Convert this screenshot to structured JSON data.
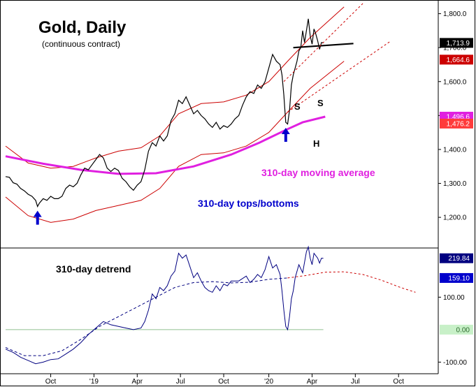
{
  "title": "Gold, Daily",
  "subtitle": "(continuous contract)",
  "colors": {
    "price": "#000000",
    "band": "#cc0000",
    "ma": "#e020e0",
    "annotation_blue": "#0000cc",
    "detrend": "#000080",
    "zero_line": "#90c090",
    "grid": "#cccccc"
  },
  "chart_data": [
    {
      "type": "line",
      "panel": "price",
      "x_tick_labels": [
        "Oct",
        "'19",
        "Apr",
        "Jul",
        "Oct",
        "'20",
        "Apr",
        "Jul",
        "Oct"
      ],
      "y_tick_labels": [
        "1,800.0",
        "1,700.0",
        "1,600.0",
        "1,500.0",
        "1,400.0",
        "1,300.0",
        "1,200.0"
      ],
      "y_ticks": [
        1800,
        1700,
        1600,
        1500,
        1400,
        1300,
        1200
      ],
      "ylim": [
        1120,
        1830
      ],
      "price_label": "1,713.9",
      "price_label_value": 1713.9,
      "band_label": "1,664.6",
      "band_label_value": 1664.6,
      "ma_label": "1,496.6",
      "ma_label_value": 1496.6,
      "lower_label": "1,476.2",
      "lower_label_value": 1476.2,
      "series": [
        {
          "name": "Gold",
          "points": [
            [
              0,
              1320
            ],
            [
              2,
              1318
            ],
            [
              4,
              1302
            ],
            [
              6,
              1298
            ],
            [
              8,
              1285
            ],
            [
              10,
              1278
            ],
            [
              12,
              1268
            ],
            [
              14,
              1262
            ],
            [
              16,
              1250
            ],
            [
              17,
              1232
            ],
            [
              18,
              1242
            ],
            [
              20,
              1255
            ],
            [
              22,
              1250
            ],
            [
              24,
              1262
            ],
            [
              26,
              1255
            ],
            [
              28,
              1255
            ],
            [
              30,
              1262
            ],
            [
              32,
              1285
            ],
            [
              34,
              1295
            ],
            [
              36,
              1290
            ],
            [
              38,
              1300
            ],
            [
              40,
              1325
            ],
            [
              42,
              1345
            ],
            [
              44,
              1340
            ],
            [
              46,
              1355
            ],
            [
              48,
              1370
            ],
            [
              50,
              1385
            ],
            [
              52,
              1375
            ],
            [
              54,
              1345
            ],
            [
              56,
              1335
            ],
            [
              58,
              1345
            ],
            [
              60,
              1338
            ],
            [
              62,
              1315
            ],
            [
              64,
              1305
            ],
            [
              66,
              1290
            ],
            [
              68,
              1280
            ],
            [
              70,
              1295
            ],
            [
              72,
              1305
            ],
            [
              74,
              1340
            ],
            [
              76,
              1395
            ],
            [
              78,
              1420
            ],
            [
              80,
              1410
            ],
            [
              82,
              1440
            ],
            [
              84,
              1425
            ],
            [
              86,
              1440
            ],
            [
              88,
              1485
            ],
            [
              90,
              1505
            ],
            [
              92,
              1545
            ],
            [
              94,
              1535
            ],
            [
              96,
              1555
            ],
            [
              98,
              1530
            ],
            [
              100,
              1505
            ],
            [
              102,
              1515
            ],
            [
              104,
              1500
            ],
            [
              106,
              1490
            ],
            [
              108,
              1475
            ],
            [
              110,
              1465
            ],
            [
              112,
              1480
            ],
            [
              114,
              1460
            ],
            [
              116,
              1470
            ],
            [
              118,
              1465
            ],
            [
              120,
              1475
            ],
            [
              122,
              1490
            ],
            [
              124,
              1500
            ],
            [
              126,
              1530
            ],
            [
              128,
              1555
            ],
            [
              130,
              1570
            ],
            [
              132,
              1565
            ],
            [
              134,
              1590
            ],
            [
              136,
              1580
            ],
            [
              138,
              1600
            ],
            [
              140,
              1640
            ],
            [
              142,
              1680
            ],
            [
              144,
              1660
            ],
            [
              146,
              1650
            ],
            [
              147,
              1620
            ],
            [
              148,
              1560
            ],
            [
              149,
              1480
            ],
            [
              150,
              1475
            ],
            [
              151,
              1515
            ],
            [
              152,
              1590
            ],
            [
              153,
              1620
            ],
            [
              154,
              1640
            ],
            [
              155,
              1660
            ],
            [
              156,
              1690
            ],
            [
              157,
              1700
            ],
            [
              158,
              1750
            ],
            [
              159,
              1715
            ],
            [
              160,
              1750
            ],
            [
              161,
              1785
            ],
            [
              162,
              1735
            ],
            [
              163,
              1710
            ],
            [
              164,
              1755
            ],
            [
              165,
              1740
            ],
            [
              166,
              1720
            ],
            [
              167,
              1695
            ],
            [
              168,
              1715
            ],
            [
              169,
              1713.9
            ]
          ]
        },
        {
          "name": "",
          "points": [
            [
              0,
              1380
            ],
            [
              20,
              1358
            ],
            [
              40,
              1340
            ],
            [
              60,
              1328
            ],
            [
              80,
              1330
            ],
            [
              100,
              1350
            ],
            [
              120,
              1385
            ],
            [
              135,
              1420
            ],
            [
              150,
              1460
            ],
            [
              158,
              1480
            ],
            [
              170,
              1496.6
            ]
          ]
        },
        {
          "name": "",
          "points": [
            [
              0,
              1410
            ],
            [
              12,
              1360
            ],
            [
              24,
              1345
            ],
            [
              36,
              1350
            ],
            [
              48,
              1375
            ],
            [
              60,
              1395
            ],
            [
              72,
              1405
            ],
            [
              82,
              1440
            ],
            [
              92,
              1505
            ],
            [
              104,
              1535
            ],
            [
              116,
              1540
            ],
            [
              128,
              1560
            ],
            [
              140,
              1600
            ],
            [
              150,
              1660
            ],
            [
              162,
              1730
            ],
            [
              180,
              1820
            ]
          ]
        },
        {
          "name": "",
          "points": [
            [
              0,
              1260
            ],
            [
              12,
              1205
            ],
            [
              24,
              1185
            ],
            [
              36,
              1195
            ],
            [
              48,
              1220
            ],
            [
              60,
              1235
            ],
            [
              72,
              1250
            ],
            [
              82,
              1285
            ],
            [
              92,
              1350
            ],
            [
              104,
              1385
            ],
            [
              116,
              1390
            ],
            [
              128,
              1410
            ],
            [
              140,
              1450
            ],
            [
              150,
              1510
            ],
            [
              162,
              1580
            ],
            [
              180,
              1660
            ]
          ]
        },
        {
          "name": "",
          "points": [
            [
              153,
              1700
            ],
            [
              185,
              1712
            ]
          ]
        }
      ],
      "annotations": [
        {
          "text": "310-day moving average",
          "color": "#e020e0"
        },
        {
          "text": "310-day tops/bottoms",
          "color": "#0000cc"
        },
        {
          "text": "S",
          "color": "#000000"
        },
        {
          "text": "S",
          "color": "#000000"
        },
        {
          "text": "H",
          "color": "#000000"
        }
      ],
      "arrows": [
        {
          "index": 17,
          "value": 1232
        },
        {
          "index": 149,
          "value": 1476
        }
      ]
    },
    {
      "type": "line",
      "panel": "detrend",
      "title": "310-day detrend",
      "y_tick_labels": [
        "100.00",
        "0.00",
        "-100.00"
      ],
      "y_ticks": [
        100,
        0,
        -100
      ],
      "ylim": [
        -125,
        245
      ],
      "value_label": "219.84",
      "value_label_value": 219.84,
      "cycle_label": "159.10",
      "cycle_label_value": 159.1,
      "zero_label": "0.00",
      "series": [
        {
          "name": "",
          "points": [
            [
              0,
              -60
            ],
            [
              4,
              -70
            ],
            [
              8,
              -85
            ],
            [
              12,
              -95
            ],
            [
              16,
              -105
            ],
            [
              20,
              -100
            ],
            [
              24,
              -92
            ],
            [
              28,
              -90
            ],
            [
              32,
              -75
            ],
            [
              36,
              -60
            ],
            [
              40,
              -40
            ],
            [
              44,
              -15
            ],
            [
              48,
              5
            ],
            [
              52,
              25
            ],
            [
              56,
              15
            ],
            [
              60,
              10
            ],
            [
              64,
              5
            ],
            [
              68,
              0
            ],
            [
              72,
              5
            ],
            [
              74,
              25
            ],
            [
              76,
              60
            ],
            [
              78,
              110
            ],
            [
              80,
              95
            ],
            [
              82,
              130
            ],
            [
              84,
              120
            ],
            [
              86,
              135
            ],
            [
              88,
              165
            ],
            [
              90,
              180
            ],
            [
              92,
              235
            ],
            [
              94,
              220
            ],
            [
              96,
              230
            ],
            [
              98,
              195
            ],
            [
              100,
              160
            ],
            [
              102,
              175
            ],
            [
              104,
              150
            ],
            [
              106,
              130
            ],
            [
              108,
              120
            ],
            [
              110,
              115
            ],
            [
              112,
              135
            ],
            [
              114,
              120
            ],
            [
              116,
              140
            ],
            [
              118,
              135
            ],
            [
              120,
              150
            ],
            [
              124,
              150
            ],
            [
              128,
              165
            ],
            [
              130,
              145
            ],
            [
              132,
              155
            ],
            [
              134,
              170
            ],
            [
              136,
              160
            ],
            [
              138,
              185
            ],
            [
              140,
              225
            ],
            [
              142,
              190
            ],
            [
              144,
              200
            ],
            [
              146,
              170
            ],
            [
              147,
              120
            ],
            [
              148,
              60
            ],
            [
              149,
              10
            ],
            [
              150,
              0
            ],
            [
              151,
              40
            ],
            [
              152,
              95
            ],
            [
              153,
              120
            ],
            [
              154,
              160
            ],
            [
              156,
              200
            ],
            [
              158,
              175
            ],
            [
              160,
              240
            ],
            [
              161,
              255
            ],
            [
              162,
              220
            ],
            [
              163,
              200
            ],
            [
              164,
              235
            ],
            [
              166,
              220
            ],
            [
              167,
              205
            ],
            [
              168,
              220
            ],
            [
              169,
              219.84
            ]
          ]
        },
        {
          "name": "",
          "points": [
            [
              0,
              -55
            ],
            [
              10,
              -80
            ],
            [
              20,
              -80
            ],
            [
              30,
              -65
            ],
            [
              40,
              -30
            ],
            [
              50,
              10
            ],
            [
              60,
              40
            ],
            [
              70,
              70
            ],
            [
              80,
              100
            ],
            [
              90,
              130
            ],
            [
              100,
              145
            ],
            [
              110,
              148
            ],
            [
              120,
              144
            ],
            [
              130,
              146
            ],
            [
              140,
              155
            ],
            [
              150,
              159.1
            ],
            [
              160,
              167
            ],
            [
              170,
              177
            ],
            [
              180,
              178
            ],
            [
              190,
              170
            ],
            [
              200,
              152
            ],
            [
              210,
              130
            ],
            [
              218,
              115
            ]
          ]
        },
        {
          "name": "",
          "points": [
            [
              0,
              0
            ],
            [
              169,
              0
            ]
          ]
        }
      ]
    }
  ]
}
